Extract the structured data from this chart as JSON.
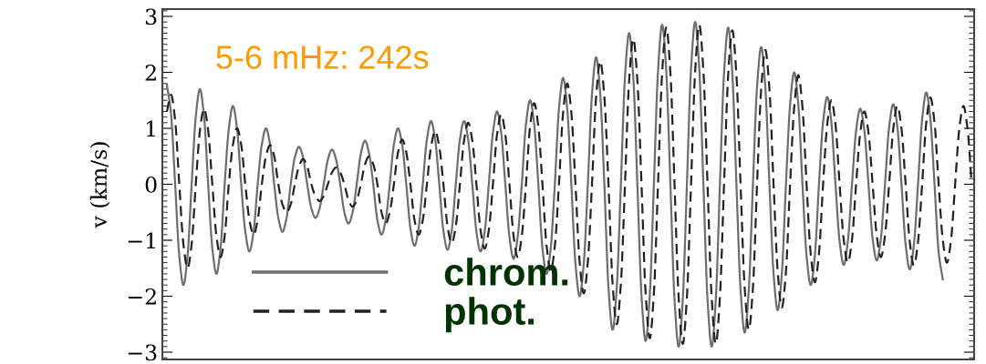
{
  "chart_data": {
    "type": "line",
    "ylabel": "v (km/s)",
    "annotations": [
      "5-6 mHz: 242s"
    ],
    "ylim": [
      -3.13,
      3.13
    ],
    "yticks": [
      {
        "value": -3,
        "label": "−3"
      },
      {
        "value": -2,
        "label": "−2"
      },
      {
        "value": -1,
        "label": "−1"
      },
      0,
      1,
      2,
      3
    ],
    "tick_labels": "y",
    "grid": false,
    "legend": "bottom left",
    "marker": "none",
    "categories": [
      null,
      null,
      null,
      null,
      null,
      null,
      null,
      null,
      null,
      null,
      null,
      null,
      null,
      null,
      null,
      null,
      null,
      null,
      null,
      null,
      null,
      null,
      null,
      null,
      null,
      null,
      null,
      null,
      null,
      null,
      null,
      null,
      null,
      null,
      null,
      null,
      null,
      null,
      null,
      null,
      null,
      null,
      null,
      null,
      null,
      null,
      null,
      null,
      null,
      null,
      null,
      null,
      null,
      null,
      null,
      null,
      null,
      null,
      null,
      null,
      null,
      null,
      null,
      null,
      null,
      null,
      null,
      null,
      null,
      null,
      null,
      null,
      null,
      null,
      null,
      null,
      null,
      null,
      null,
      null,
      null,
      null,
      null,
      null,
      null,
      null,
      null,
      null,
      null,
      null,
      null,
      null,
      null,
      null,
      null,
      null,
      null,
      null,
      null,
      null,
      null,
      null,
      null,
      null,
      null,
      null,
      null,
      null,
      null,
      null,
      null,
      null,
      null,
      null,
      null,
      null,
      null,
      null,
      null,
      null,
      null,
      null,
      null,
      null,
      null,
      null,
      null,
      null,
      null,
      null,
      null,
      null,
      null,
      null,
      null,
      null,
      null,
      null,
      null,
      null,
      null,
      null,
      null,
      null,
      null,
      null,
      null,
      null,
      null,
      null,
      null,
      null,
      null,
      null,
      null,
      null,
      null,
      null,
      null,
      null,
      null,
      null,
      null,
      null,
      null,
      null,
      null,
      null,
      null,
      null,
      null,
      null,
      null,
      null,
      null,
      null,
      null,
      null,
      null,
      null,
      null,
      null,
      null,
      null,
      null,
      null,
      null,
      null,
      null,
      null,
      null,
      null,
      null,
      null,
      null,
      null
    ],
    "series": [
      {
        "name": "chrom.",
        "color": "#6e6e6e",
        "line_style": "solid",
        "values": [
          1.78,
          1.26,
          0,
          -1.28,
          -1.8,
          -1.28,
          0,
          1.21,
          1.7,
          1.21,
          0,
          -1.14,
          -1.6,
          -1.14,
          0,
          0.99,
          1.4,
          0.99,
          0,
          -0.85,
          -1.2,
          -0.85,
          0,
          0.71,
          1.0,
          0.71,
          0,
          -0.6,
          -0.85,
          -0.6,
          0,
          0.48,
          0.67,
          0.48,
          0,
          -0.43,
          -0.6,
          -0.43,
          0,
          0.44,
          0.62,
          0.44,
          0,
          -0.5,
          -0.7,
          -0.5,
          0,
          0.55,
          0.78,
          0.55,
          0,
          -0.64,
          -0.9,
          -0.64,
          0,
          0.71,
          1.0,
          0.71,
          0,
          -0.78,
          -1.1,
          -0.78,
          0,
          0.8,
          1.13,
          0.8,
          0,
          -0.83,
          -1.17,
          -0.83,
          0,
          0.8,
          1.13,
          0.8,
          0,
          -0.85,
          -1.2,
          -0.85,
          0,
          0.92,
          1.3,
          0.92,
          0,
          -0.94,
          -1.33,
          -0.94,
          0,
          1.07,
          1.5,
          1.07,
          0,
          -1.14,
          -1.6,
          -1.14,
          0,
          1.35,
          1.9,
          1.35,
          0,
          -1.42,
          -2.0,
          -1.42,
          0,
          1.61,
          2.27,
          1.61,
          0,
          -1.85,
          -2.6,
          -1.85,
          0,
          1.92,
          2.7,
          1.92,
          0,
          -1.99,
          -2.8,
          -1.99,
          0,
          2.02,
          2.85,
          2.02,
          0,
          -2.06,
          -2.9,
          -2.06,
          0,
          2.06,
          2.9,
          2.06,
          0,
          -2.06,
          -2.9,
          -2.06,
          0,
          1.99,
          2.8,
          1.99,
          0,
          -1.88,
          -2.65,
          -1.88,
          0,
          1.74,
          2.45,
          1.74,
          0,
          -1.6,
          -2.25,
          -1.6,
          0,
          1.42,
          2.0,
          1.42,
          0,
          -1.28,
          -1.8,
          -1.28,
          0,
          1.11,
          1.56,
          1.11,
          0,
          -1.02,
          -1.44,
          -1.02,
          0,
          0.96,
          1.35,
          0.96,
          0,
          -0.97,
          -1.36,
          -0.97,
          0,
          1.02,
          1.43,
          1.02,
          0,
          -1.08,
          -1.52,
          -1.08,
          0,
          1.16,
          1.64,
          1.16,
          0,
          -1.21,
          -1.7,
          null,
          null,
          null,
          null,
          null,
          null,
          null
        ]
      },
      {
        "name": "phot.",
        "color": "#222222",
        "line_style": "dashed",
        "values": [
          1.3,
          1.6,
          1.14,
          0,
          -1.07,
          -1.5,
          -1.07,
          0,
          0.96,
          1.35,
          0.96,
          0,
          -0.92,
          -1.3,
          -0.92,
          0,
          0.71,
          1.0,
          0.71,
          0,
          -0.64,
          -0.9,
          -0.64,
          0,
          0.5,
          0.7,
          0.5,
          0,
          -0.36,
          -0.5,
          -0.36,
          0,
          0.32,
          0.45,
          0.32,
          0,
          -0.21,
          -0.3,
          -0.21,
          0,
          0.21,
          0.3,
          0.21,
          0,
          -0.28,
          -0.4,
          -0.28,
          0,
          0.36,
          0.5,
          0.36,
          0,
          -0.5,
          -0.7,
          -0.5,
          0,
          0.57,
          0.8,
          0.57,
          0,
          -0.64,
          -0.9,
          -0.64,
          0,
          0.67,
          0.95,
          0.67,
          0,
          -0.75,
          -1.05,
          -0.75,
          0,
          0.78,
          1.1,
          0.78,
          0,
          -0.82,
          -1.15,
          -0.82,
          0,
          0.89,
          1.25,
          0.89,
          0,
          -0.92,
          -1.3,
          -0.92,
          0,
          1.03,
          1.45,
          1.03,
          0,
          -1.1,
          -1.55,
          -1.1,
          0,
          1.28,
          1.8,
          1.28,
          0,
          -1.38,
          -1.95,
          -1.38,
          0,
          1.56,
          2.2,
          1.56,
          0,
          -1.78,
          -2.5,
          -1.78,
          0,
          1.85,
          2.6,
          1.85,
          0,
          -1.95,
          -2.75,
          -1.95,
          0,
          1.99,
          2.8,
          1.99,
          0,
          -2.02,
          -2.85,
          -2.02,
          0,
          2.02,
          2.85,
          2.02,
          0,
          -2.02,
          -2.85,
          -2.02,
          0,
          1.95,
          2.75,
          1.95,
          0,
          -1.85,
          -2.6,
          -1.85,
          0,
          1.7,
          2.4,
          1.7,
          0,
          -1.56,
          -2.2,
          -1.56,
          0,
          1.38,
          1.95,
          1.38,
          0,
          -1.24,
          -1.75,
          -1.24,
          0,
          1.07,
          1.5,
          1.07,
          0,
          -0.99,
          -1.4,
          -0.99,
          0,
          0.92,
          1.3,
          0.92,
          0,
          -0.92,
          -1.3,
          -0.92,
          0,
          0.99,
          1.4,
          0.99,
          0,
          -1.03,
          -1.45,
          -1.03,
          0,
          1.1,
          1.55,
          1.1,
          0,
          -0.99,
          -1.4,
          -0.99,
          0,
          0.99,
          1.4,
          0.99,
          0
        ]
      }
    ]
  }
}
